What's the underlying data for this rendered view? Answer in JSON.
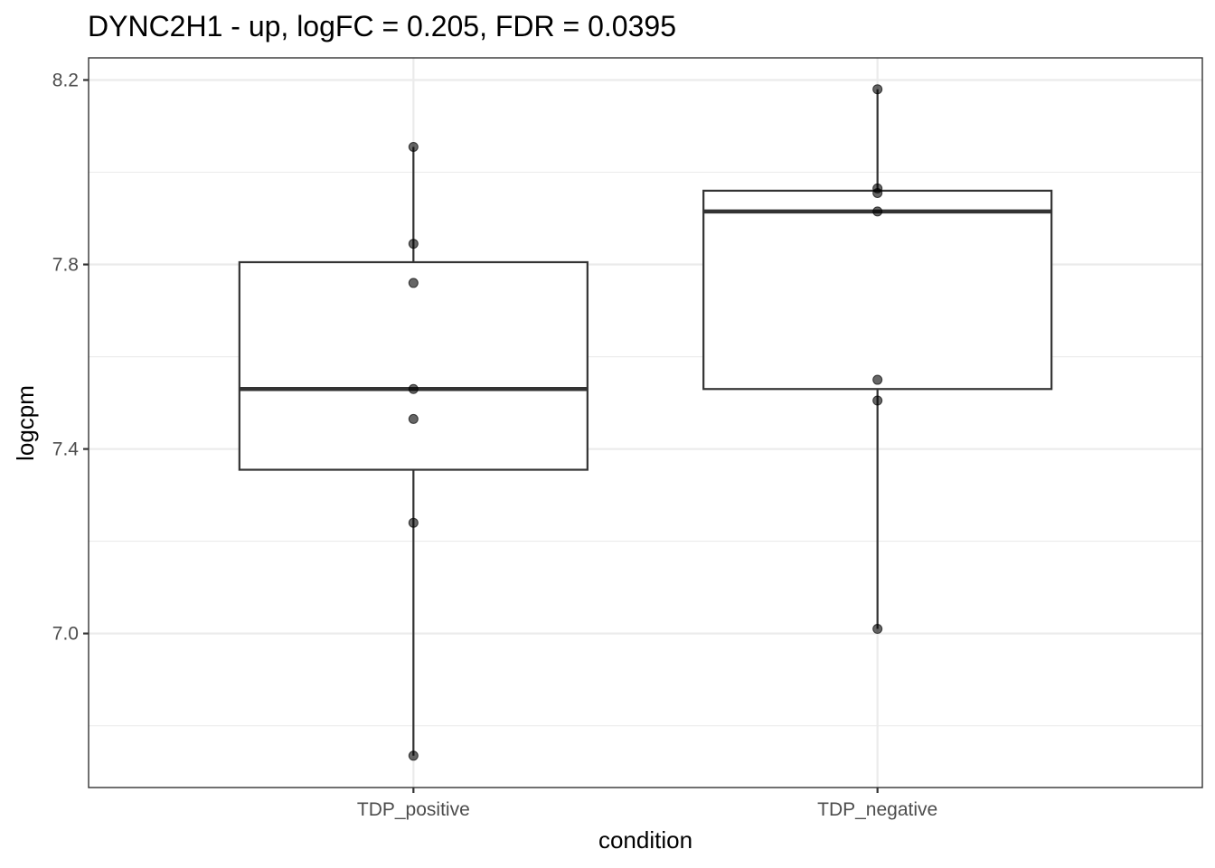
{
  "chart_data": {
    "type": "boxplot",
    "title": "DYNC2H1 - up, logFC = 0.205, FDR = 0.0395",
    "xlabel": "condition",
    "ylabel": "logcpm",
    "categories": [
      "TDP_positive",
      "TDP_negative"
    ],
    "ylim": [
      6.666,
      8.248
    ],
    "y_ticks": [
      7.0,
      7.4,
      7.8,
      8.2
    ],
    "y_tick_labels": [
      "7.0",
      "7.4",
      "7.8",
      "8.2"
    ],
    "y_minor_ticks": [
      6.8,
      7.2,
      7.6,
      8.0
    ],
    "grid": true,
    "boxes": [
      {
        "category": "TDP_positive",
        "whisker_low": 6.735,
        "q1": 7.355,
        "median": 7.53,
        "q3": 7.805,
        "whisker_high": 8.055
      },
      {
        "category": "TDP_negative",
        "whisker_low": 7.01,
        "q1": 7.53,
        "median": 7.915,
        "q3": 7.96,
        "whisker_high": 8.18
      }
    ],
    "points": [
      {
        "category": "TDP_positive",
        "values": [
          8.055,
          7.845,
          7.76,
          7.53,
          7.465,
          7.24,
          6.735
        ]
      },
      {
        "category": "TDP_negative",
        "values": [
          8.18,
          7.965,
          7.955,
          7.915,
          7.55,
          7.505,
          7.01
        ]
      }
    ]
  }
}
